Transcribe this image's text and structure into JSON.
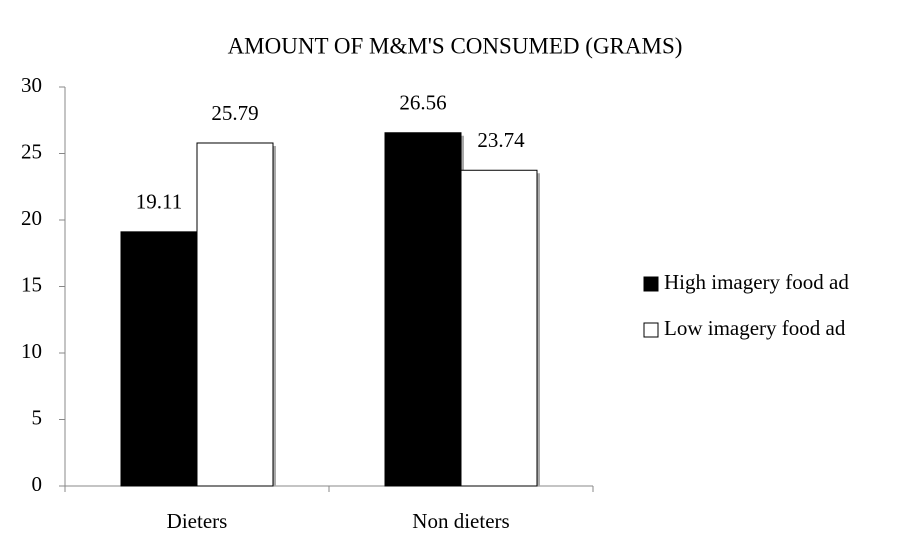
{
  "chart_data": {
    "type": "bar",
    "title": "AMOUNT OF M&M'S CONSUMED (GRAMS)",
    "categories": [
      "Dieters",
      "Non dieters"
    ],
    "series": [
      {
        "name": "High imagery food ad",
        "color": "#000000",
        "values": [
          19.11,
          26.56
        ]
      },
      {
        "name": "Low imagery food ad",
        "color": "#ffffff",
        "values": [
          25.79,
          23.74
        ]
      }
    ],
    "ylim": [
      0,
      30
    ],
    "yticks": [
      0,
      5,
      10,
      15,
      20,
      25,
      30
    ],
    "grid": false,
    "legend": "right"
  }
}
